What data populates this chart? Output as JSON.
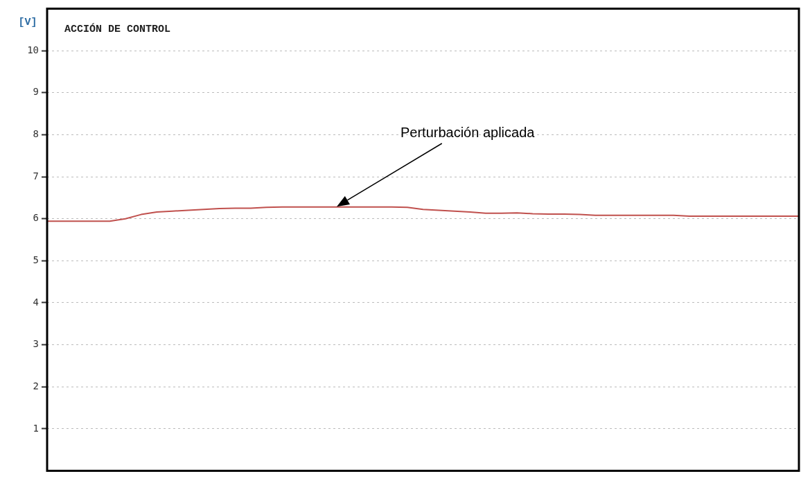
{
  "chart_data": {
    "type": "line",
    "title": "ACCIÓN DE CONTROL",
    "ylabel": "[V]",
    "categories": [
      null,
      null,
      null,
      null,
      null,
      null,
      null,
      null,
      null,
      null,
      null,
      null,
      null,
      null,
      null,
      null,
      null,
      null,
      null,
      null,
      null,
      null,
      null,
      null,
      null,
      null,
      null,
      null,
      null,
      null,
      null,
      null,
      null,
      null,
      null,
      null,
      null,
      null,
      null,
      null,
      null,
      null,
      null,
      null,
      null,
      null,
      null,
      null,
      null
    ],
    "series": [
      {
        "color": "#c0504d",
        "values": [
          5.94,
          5.94,
          5.94,
          5.94,
          5.94,
          6.0,
          6.1,
          6.16,
          6.18,
          6.2,
          6.22,
          6.24,
          6.25,
          6.25,
          6.27,
          6.28,
          6.28,
          6.28,
          6.28,
          6.28,
          6.28,
          6.28,
          6.28,
          6.27,
          6.22,
          6.2,
          6.18,
          6.16,
          6.13,
          6.13,
          6.14,
          6.12,
          6.11,
          6.11,
          6.1,
          6.08,
          6.08,
          6.08,
          6.08,
          6.08,
          6.08,
          6.06,
          6.06,
          6.06,
          6.06,
          6.06,
          6.06,
          6.06,
          6.06
        ]
      }
    ],
    "ylim": [
      0,
      11
    ],
    "yticks": [
      1,
      2,
      3,
      4,
      5,
      6,
      7,
      8,
      9,
      10
    ],
    "grid": "y",
    "legend": false,
    "marker": "none",
    "line_style": "solid",
    "annotations": [
      "Perturbación aplicada"
    ]
  }
}
